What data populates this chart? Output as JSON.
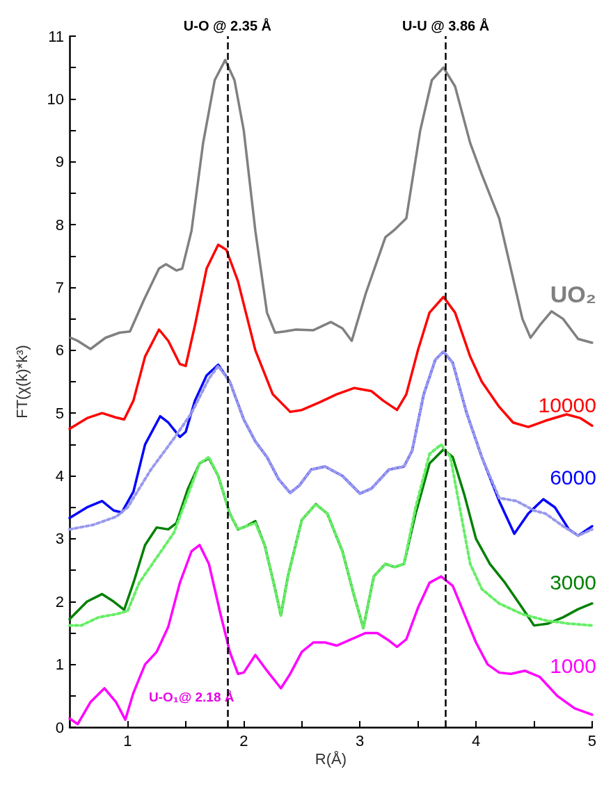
{
  "chart_data": {
    "type": "line",
    "xlabel": "R(Å)",
    "ylabel": "FT(χ(k)*k³)",
    "xlim": [
      0.5,
      5
    ],
    "ylim": [
      0,
      11
    ],
    "xticks": [
      {
        "value": 0.5,
        "label": null
      },
      1,
      {
        "value": 1.5,
        "label": null
      },
      2,
      {
        "value": 2.5,
        "label": null
      },
      3,
      {
        "value": 3.5,
        "label": null
      },
      4,
      {
        "value": 4.5,
        "label": null
      },
      5
    ],
    "yticks": [
      0,
      {
        "value": 0.5,
        "label": null
      },
      1,
      {
        "value": 1.5,
        "label": null
      },
      2,
      {
        "value": 2.5,
        "label": null
      },
      3,
      {
        "value": 3.5,
        "label": null
      },
      4,
      {
        "value": 4.5,
        "label": null
      },
      5,
      {
        "value": 5.5,
        "label": null
      },
      6,
      {
        "value": 6.5,
        "label": null
      },
      7,
      {
        "value": 7.5,
        "label": null
      },
      8,
      {
        "value": 8.5,
        "label": null
      },
      9,
      {
        "value": 9.5,
        "label": null
      },
      10,
      {
        "value": 10.5,
        "label": null
      },
      11
    ],
    "marker": "none",
    "line_style": "solid",
    "series": [
      {
        "name": "UO₂",
        "color": "#808080",
        "x": [
          0.51,
          0.57,
          0.68,
          0.81,
          0.93,
          1.02,
          1.14,
          1.27,
          1.33,
          1.42,
          1.47,
          1.55,
          1.65,
          1.75,
          1.84,
          1.92,
          2.0,
          2.1,
          2.2,
          2.27,
          2.35,
          2.45,
          2.6,
          2.75,
          2.85,
          2.93,
          3.05,
          3.22,
          3.3,
          3.4,
          3.52,
          3.62,
          3.72,
          3.82,
          3.95,
          4.05,
          4.2,
          4.3,
          4.4,
          4.47,
          4.55,
          4.65,
          4.75,
          4.88,
          5.0
        ],
        "values": [
          6.2,
          6.15,
          6.02,
          6.2,
          6.28,
          6.3,
          6.8,
          7.3,
          7.37,
          7.27,
          7.3,
          7.9,
          9.3,
          10.3,
          10.62,
          10.3,
          9.5,
          7.9,
          6.6,
          6.28,
          6.3,
          6.33,
          6.32,
          6.45,
          6.35,
          6.15,
          6.9,
          7.8,
          7.92,
          8.1,
          9.5,
          10.3,
          10.5,
          10.2,
          9.3,
          8.8,
          8.1,
          7.3,
          6.5,
          6.2,
          6.4,
          6.62,
          6.5,
          6.18,
          6.12
        ]
      },
      {
        "name": "10000",
        "color": "#ff0000",
        "x": [
          0.5,
          0.65,
          0.78,
          0.9,
          0.97,
          1.05,
          1.15,
          1.27,
          1.35,
          1.45,
          1.5,
          1.58,
          1.68,
          1.78,
          1.85,
          1.95,
          2.1,
          2.25,
          2.4,
          2.5,
          2.65,
          2.8,
          2.95,
          3.1,
          3.2,
          3.32,
          3.4,
          3.5,
          3.6,
          3.72,
          3.82,
          3.95,
          4.05,
          4.2,
          4.32,
          4.45,
          4.6,
          4.78,
          4.9,
          5.0
        ],
        "values": [
          4.75,
          4.92,
          5.0,
          4.93,
          4.9,
          5.2,
          5.9,
          6.33,
          6.15,
          5.78,
          5.75,
          6.4,
          7.3,
          7.68,
          7.6,
          7.1,
          6.0,
          5.3,
          5.02,
          5.05,
          5.17,
          5.3,
          5.4,
          5.35,
          5.2,
          5.05,
          5.3,
          6.0,
          6.6,
          6.85,
          6.6,
          5.9,
          5.5,
          5.1,
          4.85,
          4.78,
          4.88,
          4.98,
          4.92,
          4.8
        ]
      },
      {
        "name": "6000",
        "color": "#0000ff",
        "x": [
          0.5,
          0.65,
          0.78,
          0.88,
          0.95,
          1.05,
          1.15,
          1.28,
          1.35,
          1.45,
          1.5,
          1.58,
          1.68,
          1.78,
          1.88,
          2.0,
          2.1,
          2.2,
          2.3,
          2.4,
          2.48,
          2.58,
          2.7,
          2.85,
          3.0,
          3.1,
          3.25,
          3.38,
          3.45,
          3.55,
          3.65,
          3.72,
          3.8,
          3.92,
          4.05,
          4.2,
          4.33,
          4.45,
          4.58,
          4.68,
          4.8,
          4.88,
          5.0
        ],
        "values": [
          3.33,
          3.5,
          3.6,
          3.45,
          3.42,
          3.75,
          4.5,
          4.95,
          4.85,
          4.62,
          4.7,
          5.2,
          5.6,
          5.77,
          5.5,
          4.9,
          4.55,
          4.3,
          3.95,
          3.73,
          3.85,
          4.1,
          4.15,
          4.0,
          3.72,
          3.8,
          4.1,
          4.15,
          4.4,
          5.3,
          5.85,
          5.98,
          5.8,
          5.0,
          4.3,
          3.6,
          3.08,
          3.4,
          3.63,
          3.5,
          3.15,
          3.05,
          3.2
        ]
      },
      {
        "color": "#9999ee",
        "line_style": "dotted",
        "x": [
          0.5,
          0.7,
          0.9,
          1.0,
          1.2,
          1.4,
          1.55,
          1.7,
          1.78,
          1.88,
          2.0,
          2.1,
          2.2,
          2.3,
          2.4,
          2.48,
          2.58,
          2.7,
          2.85,
          3.0,
          3.1,
          3.25,
          3.38,
          3.45,
          3.55,
          3.65,
          3.72,
          3.8,
          3.92,
          4.05,
          4.2,
          4.35,
          4.5,
          4.6,
          4.75,
          4.88,
          5.0
        ],
        "values": [
          3.15,
          3.22,
          3.35,
          3.5,
          4.1,
          4.6,
          5.0,
          5.55,
          5.75,
          5.5,
          4.9,
          4.55,
          4.3,
          3.95,
          3.73,
          3.85,
          4.1,
          4.15,
          4.0,
          3.72,
          3.8,
          4.1,
          4.15,
          4.4,
          5.3,
          5.85,
          5.98,
          5.8,
          5.0,
          4.3,
          3.65,
          3.6,
          3.45,
          3.4,
          3.2,
          3.05,
          3.15
        ]
      },
      {
        "name": "3000",
        "color": "#008000",
        "x": [
          0.5,
          0.65,
          0.78,
          0.88,
          0.97,
          1.05,
          1.15,
          1.25,
          1.35,
          1.42,
          1.52,
          1.62,
          1.7,
          1.78,
          1.88,
          1.95,
          2.02,
          2.1,
          2.18,
          2.27,
          2.32,
          2.38,
          2.5,
          2.62,
          2.72,
          2.85,
          2.95,
          3.03,
          3.12,
          3.22,
          3.3,
          3.38,
          3.48,
          3.6,
          3.72,
          3.8,
          3.9,
          4.0,
          4.12,
          4.25,
          4.38,
          4.5,
          4.62,
          4.75,
          4.88,
          5.0
        ],
        "values": [
          1.72,
          2.0,
          2.12,
          2.0,
          1.87,
          2.3,
          2.9,
          3.18,
          3.15,
          3.25,
          3.8,
          4.2,
          4.28,
          4.0,
          3.4,
          3.15,
          3.2,
          3.28,
          2.9,
          2.2,
          1.78,
          2.4,
          3.3,
          3.55,
          3.4,
          2.8,
          2.1,
          1.58,
          2.4,
          2.6,
          2.55,
          2.6,
          3.4,
          4.2,
          4.42,
          4.3,
          3.7,
          3.0,
          2.6,
          2.3,
          1.95,
          1.62,
          1.65,
          1.75,
          1.88,
          1.97
        ]
      },
      {
        "color": "#66ee66",
        "line_style": "dotted",
        "x": [
          0.5,
          0.6,
          0.75,
          0.9,
          1.0,
          1.1,
          1.25,
          1.4,
          1.5,
          1.62,
          1.7,
          1.78,
          1.88,
          1.95,
          2.02,
          2.1,
          2.18,
          2.27,
          2.32,
          2.38,
          2.5,
          2.62,
          2.72,
          2.85,
          2.95,
          3.03,
          3.12,
          3.22,
          3.3,
          3.38,
          3.48,
          3.6,
          3.7,
          3.78,
          3.88,
          3.95,
          4.05,
          4.2,
          4.4,
          4.6,
          4.8,
          5.0
        ],
        "values": [
          1.62,
          1.62,
          1.75,
          1.8,
          1.85,
          2.3,
          2.7,
          3.1,
          3.6,
          4.2,
          4.3,
          4.0,
          3.4,
          3.15,
          3.2,
          3.25,
          2.9,
          2.2,
          1.78,
          2.4,
          3.3,
          3.55,
          3.4,
          2.8,
          2.1,
          1.58,
          2.4,
          2.6,
          2.55,
          2.6,
          3.5,
          4.35,
          4.5,
          4.3,
          3.3,
          2.6,
          2.2,
          1.97,
          1.8,
          1.7,
          1.65,
          1.62
        ]
      },
      {
        "name": "1000",
        "color": "#ff00ff",
        "x": [
          0.5,
          0.57,
          0.68,
          0.8,
          0.9,
          0.98,
          1.05,
          1.15,
          1.25,
          1.35,
          1.45,
          1.55,
          1.62,
          1.7,
          1.8,
          1.88,
          1.95,
          2.0,
          2.1,
          2.2,
          2.32,
          2.4,
          2.5,
          2.6,
          2.7,
          2.8,
          2.9,
          3.05,
          3.15,
          3.25,
          3.32,
          3.4,
          3.5,
          3.6,
          3.7,
          3.8,
          3.9,
          4.0,
          4.1,
          4.2,
          4.3,
          4.42,
          4.55,
          4.7,
          4.85,
          5.0
        ],
        "values": [
          0.14,
          0.05,
          0.4,
          0.62,
          0.4,
          0.12,
          0.55,
          1.0,
          1.2,
          1.6,
          2.3,
          2.8,
          2.9,
          2.6,
          1.8,
          1.2,
          0.85,
          0.87,
          1.15,
          0.9,
          0.62,
          0.85,
          1.2,
          1.35,
          1.35,
          1.3,
          1.38,
          1.5,
          1.5,
          1.38,
          1.28,
          1.4,
          1.9,
          2.3,
          2.4,
          2.25,
          1.8,
          1.35,
          1.0,
          0.87,
          0.85,
          0.9,
          0.8,
          0.5,
          0.3,
          0.2
        ]
      }
    ],
    "ref_lines": [
      {
        "axis": "x",
        "value": 1.86,
        "label": "U-O @ 2.35 Å",
        "color": "#000000",
        "line_style": "dashed"
      },
      {
        "axis": "x",
        "value": 3.74,
        "label": "U-U @ 3.86 Å",
        "color": "#000000",
        "line_style": "dashed"
      }
    ],
    "annotations": [
      "U-O₁@ 2.18 Å"
    ]
  }
}
